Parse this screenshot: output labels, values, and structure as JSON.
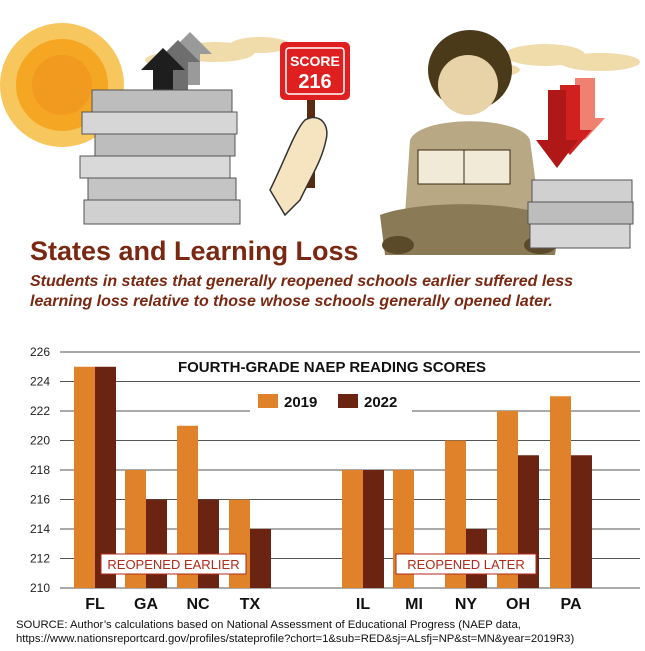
{
  "sign": {
    "line1": "SCORE",
    "line2": "216"
  },
  "title": "States and Learning Loss",
  "subtitle": "Students in states that generally reopened schools earlier suffered less learning loss relative to those whose schools generally opened later.",
  "source": {
    "line1": "SOURCE: Author’s calculations based on National Assessment of Educational Progress (NAEP data,",
    "line2": "https://www.nationsreportcard.gov/profiles/stateprofile?chort=1&sub=RED&sj=ALsfj=NP&st=MN&year=2019R3)"
  },
  "colors": {
    "series2019": "#e0822a",
    "series2022": "#6b2412",
    "title": "#7a2812",
    "sign": "#e02020"
  },
  "chart_data": {
    "type": "bar",
    "title": "FOURTH-GRADE NAEP READING SCORES",
    "categories": [
      "FL",
      "GA",
      "NC",
      "TX",
      "IL",
      "MI",
      "NY",
      "OH",
      "PA"
    ],
    "series": [
      {
        "name": "2019",
        "values": [
          225,
          218,
          221,
          216,
          218,
          218,
          220,
          222,
          223
        ]
      },
      {
        "name": "2022",
        "values": [
          225,
          216,
          216,
          214,
          218,
          210,
          214,
          219,
          219
        ]
      }
    ],
    "ylim": [
      210,
      226
    ],
    "yticks": [
      210,
      212,
      214,
      216,
      218,
      220,
      222,
      224,
      226
    ],
    "grid": true,
    "legend": "top-center",
    "groups": [
      {
        "label": "REOPENED EARLIER",
        "categories": [
          "FL",
          "GA",
          "NC",
          "TX"
        ]
      },
      {
        "label": "REOPENED LATER",
        "categories": [
          "IL",
          "MI",
          "NY",
          "OH",
          "PA"
        ]
      }
    ]
  }
}
